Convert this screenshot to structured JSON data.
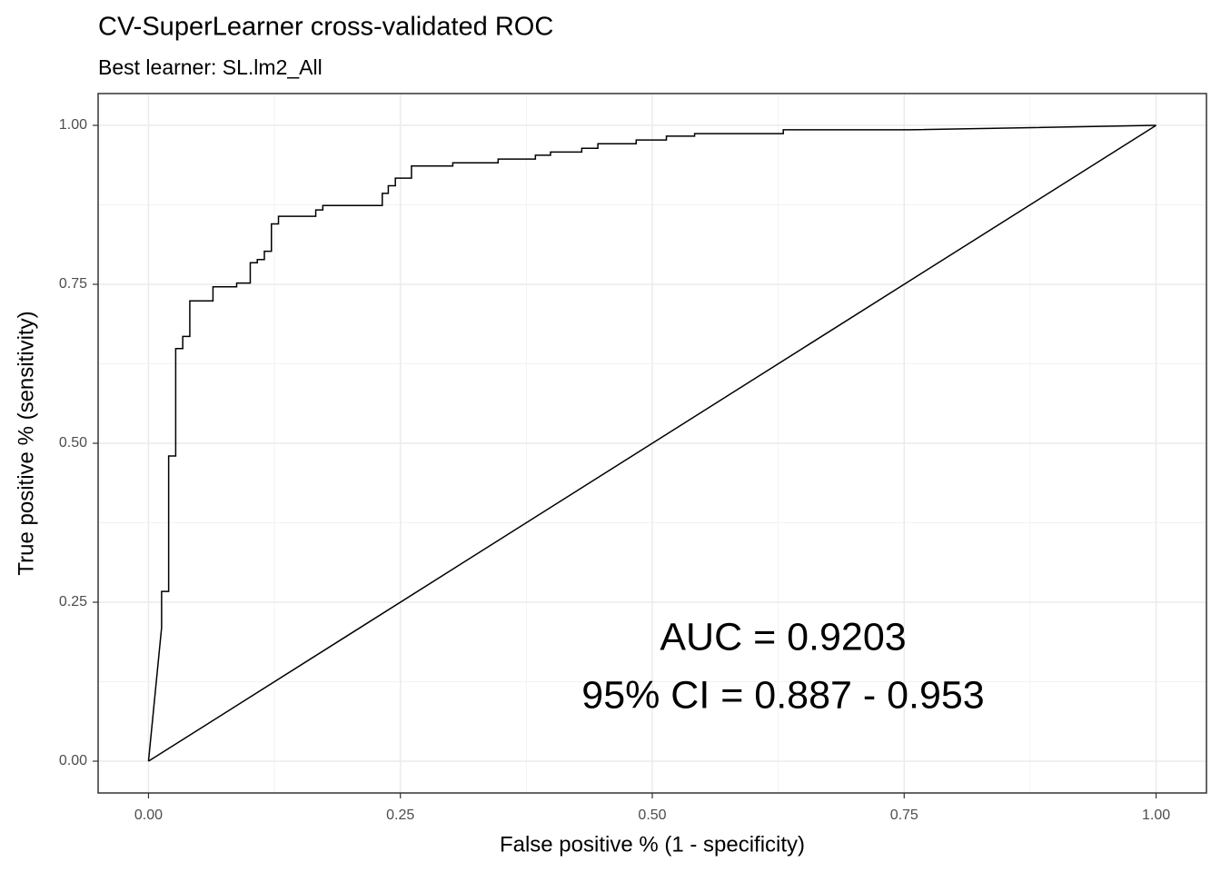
{
  "chart_data": {
    "type": "line",
    "title": "CV-SuperLearner cross-validated ROC",
    "subtitle": "Best learner: SL.lm2_All",
    "x_label": "False positive % (1 - specificity)",
    "y_label": "True positive % (sensitivity)",
    "annotations": [
      "AUC = 0.9203",
      "95% CI = 0.887 - 0.953"
    ],
    "x": [
      0,
      0.013,
      0.013,
      0.02,
      0.02,
      0.027,
      0.027,
      0.034,
      0.034,
      0.041,
      0.041,
      0.064,
      0.064,
      0.0875,
      0.0875,
      0.101,
      0.101,
      0.108,
      0.108,
      0.115,
      0.115,
      0.122,
      0.122,
      0.129,
      0.129,
      0.166,
      0.166,
      0.173,
      0.173,
      0.232,
      0.232,
      0.238,
      0.238,
      0.245,
      0.245,
      0.261,
      0.261,
      0.302,
      0.302,
      0.347,
      0.347,
      0.384,
      0.384,
      0.399,
      0.399,
      0.43,
      0.43,
      0.446,
      0.446,
      0.484,
      0.484,
      0.514,
      0.514,
      0.542,
      0.542,
      0.63,
      0.63,
      0.755,
      1
    ],
    "series": [
      {
        "color": "#000000",
        "values": [
          0,
          0.21,
          0.267,
          0.267,
          0.48,
          0.48,
          0.649,
          0.649,
          0.668,
          0.668,
          0.724,
          0.724,
          0.746,
          0.746,
          0.752,
          0.752,
          0.784,
          0.784,
          0.789,
          0.789,
          0.802,
          0.802,
          0.845,
          0.845,
          0.857,
          0.857,
          0.867,
          0.867,
          0.874,
          0.874,
          0.893,
          0.893,
          0.905,
          0.905,
          0.917,
          0.917,
          0.936,
          0.936,
          0.941,
          0.941,
          0.947,
          0.947,
          0.953,
          0.953,
          0.958,
          0.958,
          0.964,
          0.964,
          0.971,
          0.971,
          0.977,
          0.977,
          0.983,
          0.983,
          0.987,
          0.987,
          0.993,
          0.993,
          1
        ]
      }
    ],
    "reference_line": {
      "x": [
        0,
        1
      ],
      "values": [
        0,
        1
      ],
      "color": "#000000"
    },
    "xlim": [
      -0.05,
      1.05
    ],
    "ylim": [
      -0.05,
      1.05
    ],
    "xticks": [
      {
        "value": 0,
        "label": "0.00"
      },
      {
        "value": 0.25,
        "label": "0.25"
      },
      {
        "value": 0.5,
        "label": "0.50"
      },
      {
        "value": 0.75,
        "label": "0.75"
      },
      {
        "value": 1,
        "label": "1.00"
      }
    ],
    "yticks": [
      {
        "value": 0,
        "label": "0.00"
      },
      {
        "value": 0.25,
        "label": "0.25"
      },
      {
        "value": 0.5,
        "label": "0.50"
      },
      {
        "value": 0.75,
        "label": "0.75"
      },
      {
        "value": 1,
        "label": "1.00"
      }
    ],
    "xminor_ticks": [
      0.125,
      0.375,
      0.625,
      0.875
    ],
    "yminor_ticks": [
      0.125,
      0.375,
      0.625,
      0.875
    ],
    "grid": true
  }
}
